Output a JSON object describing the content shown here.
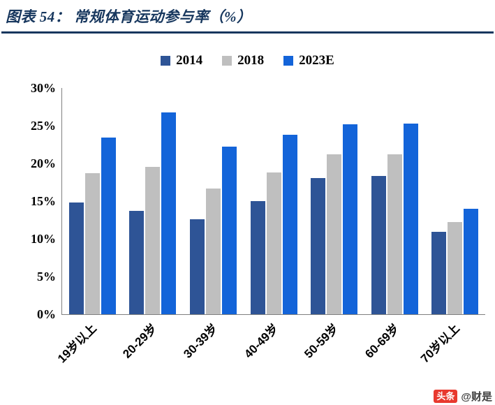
{
  "header": {
    "title": "图表 54：  常规体育运动参与率（%）"
  },
  "chart_data": {
    "type": "bar",
    "title": "常规体育运动参与率（%）",
    "categories": [
      "19岁以上",
      "20-29岁",
      "30-39岁",
      "40-49岁",
      "50-59岁",
      "60-69岁",
      "70岁以上"
    ],
    "series": [
      {
        "name": "2014",
        "color": "#2E5496",
        "values": [
          14.8,
          13.7,
          12.6,
          15.0,
          18.1,
          18.3,
          10.9
        ]
      },
      {
        "name": "2018",
        "color": "#BFBFBF",
        "values": [
          18.7,
          19.5,
          16.7,
          18.8,
          21.2,
          21.2,
          12.2
        ]
      },
      {
        "name": "2023E",
        "color": "#1364D9",
        "values": [
          23.4,
          26.8,
          22.2,
          23.8,
          25.2,
          25.3,
          14.0
        ]
      }
    ],
    "ylim": [
      0,
      30
    ],
    "ytick_step": 5,
    "ytick_suffix": "%",
    "legend_position": "top",
    "grid": false,
    "axis_color": "#7f7f7f",
    "title_color": "#17375E"
  },
  "watermark": {
    "badge": "头条",
    "handle": "@财是"
  }
}
